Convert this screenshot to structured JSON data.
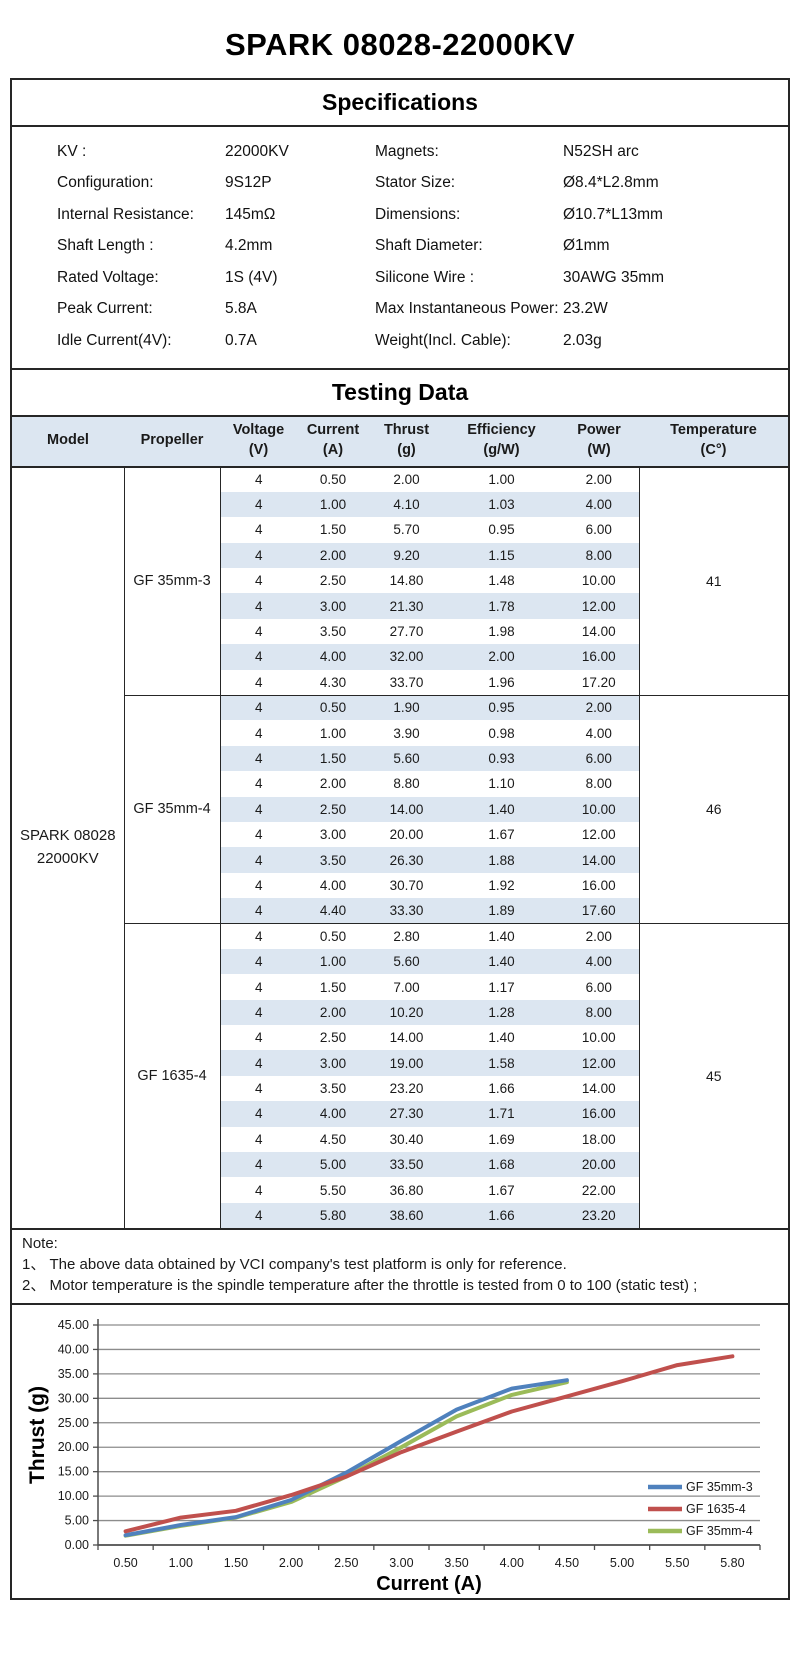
{
  "page": {
    "title": "SPARK 08028-22000KV"
  },
  "specifications": {
    "title": "Specifications",
    "rows": [
      {
        "label_left": "KV :",
        "value_left": "22000KV",
        "label_right": "Magnets:",
        "value_right": "N52SH   arc"
      },
      {
        "label_left": "Configuration:",
        "value_left": "9S12P",
        "label_right": "Stator Size:",
        "value_right": "Ø8.4*L2.8mm"
      },
      {
        "label_left": "Internal Resistance:",
        "value_left": "145mΩ",
        "label_right": "Dimensions:",
        "value_right": "Ø10.7*L13mm"
      },
      {
        "label_left": "Shaft Length :",
        "value_left": "4.2mm",
        "label_right": "Shaft Diameter:",
        "value_right": "Ø1mm"
      },
      {
        "label_left": "Rated Voltage:",
        "value_left": "1S  (4V)",
        "label_right": "Silicone Wire :",
        "value_right": "30AWG 35mm"
      },
      {
        "label_left": "Peak Current:",
        "value_left": "5.8A",
        "label_right": "Max Instantaneous Power:",
        "value_right": "23.2W"
      },
      {
        "label_left": "Idle Current(4V):",
        "value_left": "0.7A",
        "label_right": "Weight(Incl. Cable):",
        "value_right": "2.03g"
      }
    ]
  },
  "testing": {
    "title": "Testing Data",
    "columns": [
      {
        "label": "Model",
        "unit": ""
      },
      {
        "label": "Propeller",
        "unit": ""
      },
      {
        "label": "Voltage",
        "unit": "(V)"
      },
      {
        "label": "Current",
        "unit": "(A)"
      },
      {
        "label": "Thrust",
        "unit": "(g)"
      },
      {
        "label": "Efficiency",
        "unit": "(g/W)"
      },
      {
        "label": "Power",
        "unit": "(W)"
      },
      {
        "label": "Temperature",
        "unit": "(C°)"
      }
    ],
    "model_lines": [
      "SPARK  08028",
      "22000KV"
    ],
    "groups": [
      {
        "propeller": "GF 35mm-3",
        "temperature": "41",
        "rows": [
          [
            "4",
            "0.50",
            "2.00",
            "1.00",
            "2.00"
          ],
          [
            "4",
            "1.00",
            "4.10",
            "1.03",
            "4.00"
          ],
          [
            "4",
            "1.50",
            "5.70",
            "0.95",
            "6.00"
          ],
          [
            "4",
            "2.00",
            "9.20",
            "1.15",
            "8.00"
          ],
          [
            "4",
            "2.50",
            "14.80",
            "1.48",
            "10.00"
          ],
          [
            "4",
            "3.00",
            "21.30",
            "1.78",
            "12.00"
          ],
          [
            "4",
            "3.50",
            "27.70",
            "1.98",
            "14.00"
          ],
          [
            "4",
            "4.00",
            "32.00",
            "2.00",
            "16.00"
          ],
          [
            "4",
            "4.30",
            "33.70",
            "1.96",
            "17.20"
          ]
        ]
      },
      {
        "propeller": "GF 35mm-4",
        "temperature": "46",
        "rows": [
          [
            "4",
            "0.50",
            "1.90",
            "0.95",
            "2.00"
          ],
          [
            "4",
            "1.00",
            "3.90",
            "0.98",
            "4.00"
          ],
          [
            "4",
            "1.50",
            "5.60",
            "0.93",
            "6.00"
          ],
          [
            "4",
            "2.00",
            "8.80",
            "1.10",
            "8.00"
          ],
          [
            "4",
            "2.50",
            "14.00",
            "1.40",
            "10.00"
          ],
          [
            "4",
            "3.00",
            "20.00",
            "1.67",
            "12.00"
          ],
          [
            "4",
            "3.50",
            "26.30",
            "1.88",
            "14.00"
          ],
          [
            "4",
            "4.00",
            "30.70",
            "1.92",
            "16.00"
          ],
          [
            "4",
            "4.40",
            "33.30",
            "1.89",
            "17.60"
          ]
        ]
      },
      {
        "propeller": "GF 1635-4",
        "temperature": "45",
        "rows": [
          [
            "4",
            "0.50",
            "2.80",
            "1.40",
            "2.00"
          ],
          [
            "4",
            "1.00",
            "5.60",
            "1.40",
            "4.00"
          ],
          [
            "4",
            "1.50",
            "7.00",
            "1.17",
            "6.00"
          ],
          [
            "4",
            "2.00",
            "10.20",
            "1.28",
            "8.00"
          ],
          [
            "4",
            "2.50",
            "14.00",
            "1.40",
            "10.00"
          ],
          [
            "4",
            "3.00",
            "19.00",
            "1.58",
            "12.00"
          ],
          [
            "4",
            "3.50",
            "23.20",
            "1.66",
            "14.00"
          ],
          [
            "4",
            "4.00",
            "27.30",
            "1.71",
            "16.00"
          ],
          [
            "4",
            "4.50",
            "30.40",
            "1.69",
            "18.00"
          ],
          [
            "4",
            "5.00",
            "33.50",
            "1.68",
            "20.00"
          ],
          [
            "4",
            "5.50",
            "36.80",
            "1.67",
            "22.00"
          ],
          [
            "4",
            "5.80",
            "38.60",
            "1.66",
            "23.20"
          ]
        ]
      }
    ]
  },
  "note": {
    "heading": "Note:",
    "items": [
      "1、 The above data obtained by VCI company's test platform is only for reference.",
      "2、 Motor temperature is the spindle temperature after the throttle is tested from 0 to 100   (static test)  ;"
    ]
  },
  "chart_data": {
    "type": "line",
    "title": "",
    "xlabel": "Current  (A)",
    "ylabel": "Thrust  (g)",
    "categories": [
      "0.50",
      "1.00",
      "1.50",
      "2.00",
      "2.50",
      "3.00",
      "3.50",
      "4.00",
      "4.50",
      "5.00",
      "5.50",
      "5.80"
    ],
    "series": [
      {
        "name": "GF 35mm-3",
        "color": "#4F81BD",
        "values": [
          2.0,
          4.1,
          5.7,
          9.2,
          14.8,
          21.3,
          27.7,
          32.0,
          33.7
        ]
      },
      {
        "name": "GF 1635-4",
        "color": "#C0504D",
        "values": [
          2.8,
          5.6,
          7.0,
          10.2,
          14.0,
          19.0,
          23.2,
          27.3,
          30.4,
          33.5,
          36.8,
          38.6
        ]
      },
      {
        "name": "GF 35mm-4",
        "color": "#9BBB59",
        "values": [
          1.9,
          3.9,
          5.6,
          8.8,
          14.0,
          20.0,
          26.3,
          30.7,
          33.3
        ]
      }
    ],
    "ylim": [
      0,
      45
    ],
    "ytick_step": 5,
    "grid": true,
    "legend_position": "right-bottom",
    "gridline_color": "#8c8c8c",
    "axis_color": "#4d4d4d"
  }
}
